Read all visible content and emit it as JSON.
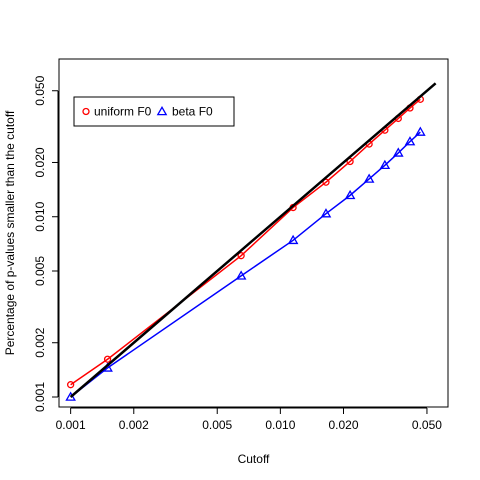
{
  "chart_data": {
    "type": "line",
    "xlabel": "Cutoff",
    "ylabel": "Percentage of p-values smaller than the cutoff",
    "xscale": "log",
    "yscale": "log",
    "xlim": [
      0.00088,
      0.063
    ],
    "ylim": [
      0.00088,
      0.075
    ],
    "x_ticks": [
      0.001,
      0.002,
      0.005,
      0.01,
      0.02,
      0.05
    ],
    "x_tick_labels": [
      "0.001",
      "0.002",
      "0.005",
      "0.010",
      "0.020",
      "0.050"
    ],
    "y_ticks": [
      0.001,
      0.002,
      0.005,
      0.01,
      0.02,
      0.05
    ],
    "y_tick_labels": [
      "0.001",
      "0.002",
      "0.005",
      "0.010",
      "0.020",
      "0.050"
    ],
    "grid": false,
    "legend_position": "top-left",
    "reference_line": {
      "x": [
        0.001,
        0.055
      ],
      "y": [
        0.001,
        0.055
      ],
      "color": "#000000"
    },
    "series": [
      {
        "name": "uniform F0",
        "color": "#ff0000",
        "marker": "circle",
        "x": [
          0.001,
          0.0015,
          0.0065,
          0.0115,
          0.0165,
          0.0215,
          0.0265,
          0.0315,
          0.0365,
          0.0415,
          0.0465
        ],
        "y": [
          0.00117,
          0.00162,
          0.00608,
          0.01124,
          0.01554,
          0.02025,
          0.0253,
          0.0302,
          0.0351,
          0.0401,
          0.0448
        ]
      },
      {
        "name": "beta F0",
        "color": "#0000ff",
        "marker": "triangle",
        "x": [
          0.001,
          0.0015,
          0.0065,
          0.0115,
          0.0165,
          0.0215,
          0.0265,
          0.0315,
          0.0365,
          0.0415,
          0.0465
        ],
        "y": [
          0.001,
          0.00145,
          0.0047,
          0.0074,
          0.0104,
          0.01314,
          0.0162,
          0.0193,
          0.0226,
          0.0261,
          0.0295
        ]
      }
    ]
  }
}
